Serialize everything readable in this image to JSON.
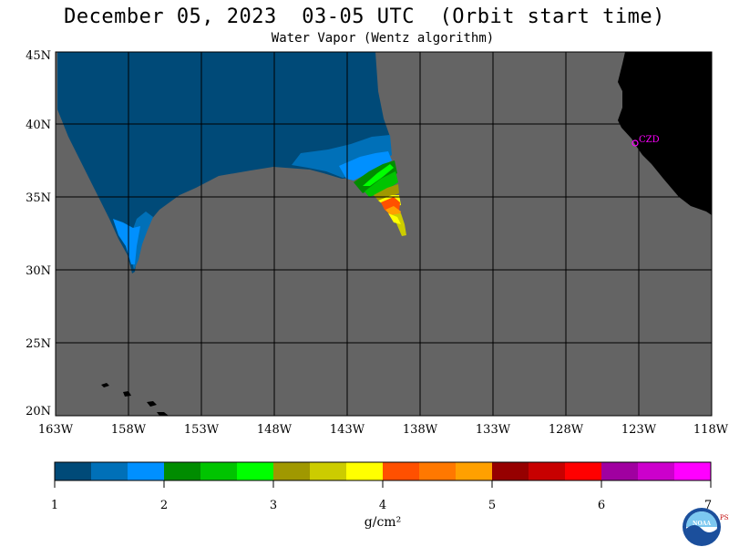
{
  "header": {
    "title": "December 05, 2023  03-05 UTC  (Orbit start time)",
    "subtitle": "Water Vapor (Wentz algorithm)"
  },
  "map": {
    "lon_range": [
      -163,
      -118
    ],
    "lat_range": [
      20,
      45
    ],
    "lon_labels": [
      "163W",
      "158W",
      "153W",
      "148W",
      "143W",
      "138W",
      "133W",
      "128W",
      "123W",
      "118W"
    ],
    "lat_labels": [
      "45N",
      "40N",
      "35N",
      "30N",
      "25N",
      "20N"
    ],
    "no_data_color": "#646464",
    "land_color": "#000000",
    "station": {
      "label": "CZD",
      "lon": -123.0,
      "lat": 38.6,
      "color": "#ff00ff"
    }
  },
  "colorbar": {
    "unit": "g/cm²",
    "tick_labels": [
      "1",
      "2",
      "3",
      "4",
      "5",
      "6",
      "7"
    ],
    "min": 1,
    "max": 7,
    "colors": [
      "#004a78",
      "#0070b8",
      "#0090ff",
      "#008c00",
      "#00c400",
      "#00ff00",
      "#a09800",
      "#cccc00",
      "#ffff00",
      "#ff5000",
      "#ff7800",
      "#ffa000",
      "#960000",
      "#c80000",
      "#ff0000",
      "#a000a0",
      "#cc00cc",
      "#ff00ff"
    ]
  },
  "logos": {
    "noaa": "NOAA",
    "psl": "PSL"
  }
}
